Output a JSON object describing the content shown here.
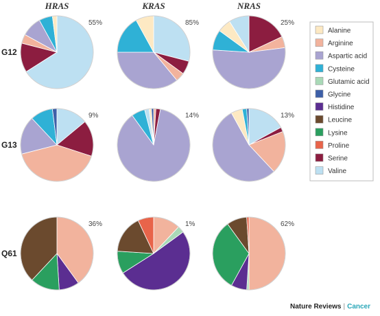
{
  "chart_data": {
    "type": "pie",
    "columns": [
      "HRAS",
      "KRAS",
      "NRAS"
    ],
    "rows": [
      "G12",
      "G13",
      "Q61"
    ],
    "legend": [
      {
        "name": "Alanine",
        "color": "#fde9c3"
      },
      {
        "name": "Arginine",
        "color": "#f2b39d"
      },
      {
        "name": "Aspartic acid",
        "color": "#a9a4d1"
      },
      {
        "name": "Cysteine",
        "color": "#2fb1d6"
      },
      {
        "name": "Glutamic acid",
        "color": "#a9d9b7"
      },
      {
        "name": "Glycine",
        "color": "#3d5fa8"
      },
      {
        "name": "Histidine",
        "color": "#5b2e91"
      },
      {
        "name": "Leucine",
        "color": "#6b4a2e"
      },
      {
        "name": "Lysine",
        "color": "#2a9f5f"
      },
      {
        "name": "Proline",
        "color": "#e8644a"
      },
      {
        "name": "Serine",
        "color": "#8c1d40"
      },
      {
        "name": "Valine",
        "color": "#bde0f2"
      }
    ],
    "pies": [
      {
        "row": "G12",
        "gene": "HRAS",
        "percent_label": "55%",
        "slices": [
          {
            "aa": "Valine",
            "value": 66
          },
          {
            "aa": "Serine",
            "value": 13
          },
          {
            "aa": "Arginine",
            "value": 4
          },
          {
            "aa": "Aspartic acid",
            "value": 9
          },
          {
            "aa": "Cysteine",
            "value": 6
          },
          {
            "aa": "Alanine",
            "value": 2
          }
        ]
      },
      {
        "row": "G12",
        "gene": "KRAS",
        "percent_label": "85%",
        "slices": [
          {
            "aa": "Valine",
            "value": 29
          },
          {
            "aa": "Serine",
            "value": 6
          },
          {
            "aa": "Arginine",
            "value": 4
          },
          {
            "aa": "Aspartic acid",
            "value": 36
          },
          {
            "aa": "Cysteine",
            "value": 17
          },
          {
            "aa": "Alanine",
            "value": 8
          }
        ]
      },
      {
        "row": "G12",
        "gene": "NRAS",
        "percent_label": "25%",
        "slices": [
          {
            "aa": "Serine",
            "value": 18
          },
          {
            "aa": "Arginine",
            "value": 5
          },
          {
            "aa": "Aspartic acid",
            "value": 53
          },
          {
            "aa": "Cysteine",
            "value": 9
          },
          {
            "aa": "Alanine",
            "value": 6
          },
          {
            "aa": "Valine",
            "value": 9
          }
        ]
      },
      {
        "row": "G13",
        "gene": "HRAS",
        "percent_label": "9%",
        "slices": [
          {
            "aa": "Valine",
            "value": 14
          },
          {
            "aa": "Serine",
            "value": 16
          },
          {
            "aa": "Arginine",
            "value": 41
          },
          {
            "aa": "Aspartic acid",
            "value": 17
          },
          {
            "aa": "Cysteine",
            "value": 10
          },
          {
            "aa": "Glycine",
            "value": 2
          }
        ]
      },
      {
        "row": "G13",
        "gene": "KRAS",
        "percent_label": "14%",
        "slices": [
          {
            "aa": "Arginine",
            "value": 1
          },
          {
            "aa": "Serine",
            "value": 2
          },
          {
            "aa": "Aspartic acid",
            "value": 87
          },
          {
            "aa": "Cysteine",
            "value": 6
          },
          {
            "aa": "Valine",
            "value": 2
          },
          {
            "aa": "Alanine",
            "value": 1
          },
          {
            "aa": "Glycine",
            "value": 1
          }
        ]
      },
      {
        "row": "G13",
        "gene": "NRAS",
        "percent_label": "13%",
        "slices": [
          {
            "aa": "Valine",
            "value": 17
          },
          {
            "aa": "Serine",
            "value": 2
          },
          {
            "aa": "Arginine",
            "value": 19
          },
          {
            "aa": "Aspartic acid",
            "value": 54
          },
          {
            "aa": "Alanine",
            "value": 5
          },
          {
            "aa": "Cysteine",
            "value": 2
          },
          {
            "aa": "Glycine",
            "value": 1
          }
        ]
      },
      {
        "row": "Q61",
        "gene": "HRAS",
        "percent_label": "36%",
        "slices": [
          {
            "aa": "Arginine",
            "value": 40
          },
          {
            "aa": "Histidine",
            "value": 9
          },
          {
            "aa": "Lysine",
            "value": 13
          },
          {
            "aa": "Leucine",
            "value": 38
          }
        ]
      },
      {
        "row": "Q61",
        "gene": "KRAS",
        "percent_label": "1%",
        "slices": [
          {
            "aa": "Arginine",
            "value": 12
          },
          {
            "aa": "Glutamic acid",
            "value": 3
          },
          {
            "aa": "Histidine",
            "value": 51
          },
          {
            "aa": "Lysine",
            "value": 10
          },
          {
            "aa": "Leucine",
            "value": 17
          },
          {
            "aa": "Proline",
            "value": 7
          }
        ]
      },
      {
        "row": "Q61",
        "gene": "NRAS",
        "percent_label": "62%",
        "slices": [
          {
            "aa": "Arginine",
            "value": 50
          },
          {
            "aa": "Glutamic acid",
            "value": 1
          },
          {
            "aa": "Histidine",
            "value": 7
          },
          {
            "aa": "Lysine",
            "value": 32
          },
          {
            "aa": "Leucine",
            "value": 9
          },
          {
            "aa": "Proline",
            "value": 1
          }
        ]
      }
    ]
  },
  "credit": {
    "publisher": "Nature Reviews",
    "separator": "|",
    "journal": "Cancer"
  }
}
